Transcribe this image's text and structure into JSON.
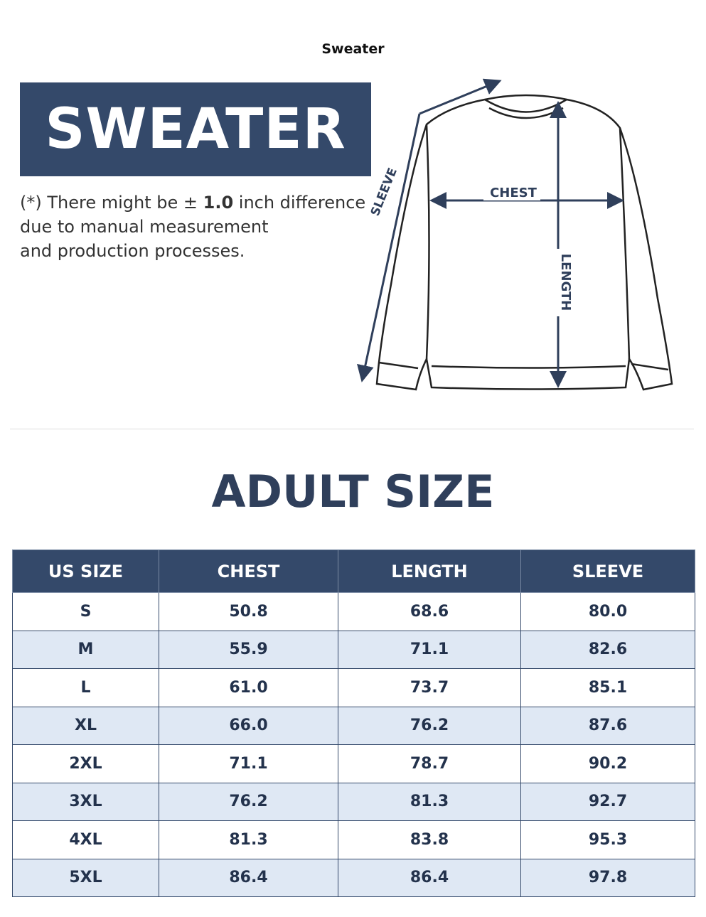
{
  "header": {
    "small_title": "Sweater",
    "banner": "SWEATER"
  },
  "note": {
    "line1": [
      "(*) There might be ± ",
      "1.0",
      " inch difference"
    ],
    "line2": "due to manual measurement",
    "line3": "and production processes."
  },
  "diagram": {
    "chest": "CHEST",
    "length": "LENGTH",
    "sleeve": "SLEEVE"
  },
  "table": {
    "title": "ADULT SIZE",
    "headers": [
      "US SIZE",
      "CHEST",
      "LENGTH",
      "SLEEVE"
    ],
    "rows": [
      [
        "S",
        "50.8",
        "68.6",
        "80.0"
      ],
      [
        "M",
        "55.9",
        "71.1",
        "82.6"
      ],
      [
        "L",
        "61.0",
        "73.7",
        "85.1"
      ],
      [
        "XL",
        "66.0",
        "76.2",
        "87.6"
      ],
      [
        "2XL",
        "71.1",
        "78.7",
        "90.2"
      ],
      [
        "3XL",
        "76.2",
        "81.3",
        "92.7"
      ],
      [
        "4XL",
        "81.3",
        "83.8",
        "95.3"
      ],
      [
        "5XL",
        "86.4",
        "86.4",
        "97.8"
      ]
    ]
  }
}
